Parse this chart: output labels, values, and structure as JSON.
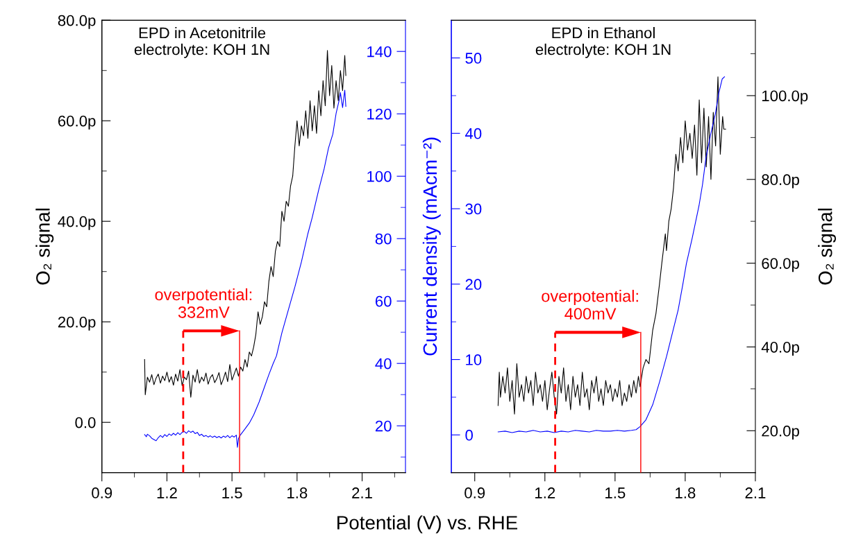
{
  "chart_data": [
    {
      "type": "line",
      "title": "EPD in Acetonitrile\nelectrolyte: KOH 1N",
      "xlabel": "Potential (V) vs. RHE",
      "ylabel": "O₂ signal",
      "xlim": [
        0.9,
        2.3
      ],
      "xticks": [
        0.9,
        1.2,
        1.5,
        1.8,
        2.1,
        {
          "value": 1.05,
          "label": null
        },
        {
          "value": 1.35,
          "label": null
        },
        {
          "value": 1.65,
          "label": null
        },
        {
          "value": 1.95,
          "label": null
        },
        {
          "value": 2.25,
          "label": null
        }
      ],
      "ylim": [
        -10,
        80
      ],
      "yticks": [
        {
          "value": 0,
          "label": "0.0"
        },
        {
          "value": 20,
          "label": "20.0p"
        },
        {
          "value": 40,
          "label": "40.0p"
        },
        {
          "value": 60,
          "label": "60.0p"
        },
        {
          "value": 80,
          "label": "80.0p"
        },
        {
          "value": 10,
          "label": null
        },
        {
          "value": 30,
          "label": null
        },
        {
          "value": 50,
          "label": null
        },
        {
          "value": 70,
          "label": null
        }
      ],
      "y2lim": [
        5,
        150
      ],
      "y2ticks": [
        20,
        40,
        60,
        80,
        100,
        120,
        140,
        {
          "value": 10,
          "label": null
        },
        {
          "value": 30,
          "label": null
        },
        {
          "value": 50,
          "label": null
        },
        {
          "value": 70,
          "label": null
        },
        {
          "value": 90,
          "label": null
        },
        {
          "value": 110,
          "label": null
        },
        {
          "value": 130,
          "label": null
        }
      ],
      "series": [
        {
          "color": "#000000",
          "x": [
            1.097,
            1.1,
            1.11,
            1.12,
            1.13,
            1.14,
            1.15,
            1.16,
            1.17,
            1.18,
            1.19,
            1.2,
            1.21,
            1.22,
            1.23,
            1.24,
            1.25,
            1.26,
            1.27,
            1.28,
            1.29,
            1.3,
            1.31,
            1.32,
            1.33,
            1.34,
            1.35,
            1.36,
            1.37,
            1.38,
            1.39,
            1.4,
            1.41,
            1.42,
            1.43,
            1.44,
            1.45,
            1.46,
            1.47,
            1.48,
            1.49,
            1.5,
            1.51,
            1.52,
            1.53,
            1.54,
            1.55,
            1.56,
            1.57,
            1.58,
            1.59,
            1.6,
            1.61,
            1.62,
            1.63,
            1.64,
            1.65,
            1.66,
            1.67,
            1.68,
            1.69,
            1.7,
            1.71,
            1.72,
            1.73,
            1.74,
            1.75,
            1.76,
            1.77,
            1.78,
            1.79,
            1.8,
            1.81,
            1.82,
            1.83,
            1.84,
            1.85,
            1.86,
            1.87,
            1.88,
            1.89,
            1.9,
            1.91,
            1.92,
            1.93,
            1.94,
            1.95,
            1.96,
            1.97,
            1.98,
            1.99,
            2.0,
            2.01,
            2.02,
            2.025
          ],
          "values": [
            12.5,
            5.5,
            9.0,
            8.0,
            9.5,
            7.5,
            8.8,
            9.6,
            7.8,
            9.2,
            8.3,
            10.0,
            8.0,
            9.1,
            7.4,
            9.6,
            8.2,
            10.5,
            7.3,
            9.0,
            8.5,
            10.2,
            5.0,
            9.4,
            8.0,
            10.5,
            7.8,
            9.0,
            8.2,
            9.8,
            7.6,
            8.9,
            9.5,
            7.9,
            8.7,
            9.9,
            7.5,
            8.6,
            10.0,
            8.1,
            11.5,
            8.4,
            9.6,
            10.8,
            9.2,
            11.0,
            10.2,
            12.5,
            11.0,
            14.0,
            13.2,
            15.0,
            17.5,
            22.0,
            19.5,
            21.0,
            24.0,
            23.0,
            28.0,
            31.0,
            29.0,
            34.0,
            36.0,
            35.0,
            42.0,
            40.0,
            44.0,
            43.0,
            47.0,
            49.0,
            55.0,
            60.0,
            55.0,
            59.0,
            57.0,
            62.0,
            56.5,
            64.0,
            58.0,
            63.0,
            57.5,
            66.0,
            61.0,
            68.0,
            63.0,
            74.0,
            65.0,
            71.0,
            62.5,
            68.0,
            64.0,
            70.0,
            66.0,
            73.0,
            69.0
          ]
        },
        {
          "color": "#0000ff",
          "axis": "y2",
          "x": [
            1.097,
            1.105,
            1.11,
            1.12,
            1.13,
            1.14,
            1.15,
            1.16,
            1.17,
            1.18,
            1.19,
            1.2,
            1.21,
            1.22,
            1.23,
            1.24,
            1.25,
            1.26,
            1.27,
            1.28,
            1.29,
            1.3,
            1.31,
            1.32,
            1.33,
            1.34,
            1.35,
            1.36,
            1.37,
            1.38,
            1.39,
            1.4,
            1.41,
            1.42,
            1.43,
            1.44,
            1.45,
            1.46,
            1.47,
            1.48,
            1.49,
            1.5,
            1.51,
            1.52,
            1.525,
            1.53,
            1.54,
            1.56,
            1.58,
            1.6,
            1.625,
            1.65,
            1.67,
            1.69,
            1.705,
            1.73,
            1.76,
            1.79,
            1.82,
            1.85,
            1.87,
            1.9,
            1.925,
            1.945,
            1.965,
            1.98,
            1.995,
            2.0,
            2.01,
            2.02,
            2.025
          ],
          "values": [
            17.2,
            16.5,
            17.3,
            16.8,
            16.0,
            15.6,
            15.2,
            16.2,
            16.9,
            16.3,
            17.2,
            16.6,
            17.4,
            16.9,
            17.6,
            17.0,
            17.8,
            17.2,
            17.9,
            18.2,
            17.6,
            18.4,
            17.9,
            18.3,
            17.5,
            17.9,
            16.9,
            17.3,
            16.6,
            16.9,
            16.4,
            16.8,
            16.3,
            16.7,
            16.2,
            16.6,
            16.1,
            16.7,
            16.3,
            16.9,
            16.2,
            16.8,
            16.4,
            17.0,
            13.1,
            16.0,
            17.2,
            19.0,
            20.9,
            23.5,
            27.6,
            32.5,
            36.4,
            40.0,
            42.4,
            49.8,
            57.2,
            64.5,
            72.5,
            81.6,
            86.8,
            95.7,
            102.4,
            109.0,
            113.5,
            120.1,
            124.6,
            126.8,
            122.0,
            127.6,
            122.4
          ]
        }
      ],
      "ref_lines": [
        {
          "axis": "x",
          "value": 1.275,
          "color": "#ff0000",
          "line_style": "dashed"
        },
        {
          "axis": "x",
          "value": 1.535,
          "color": "#ff0000",
          "line_style": "solid"
        }
      ],
      "annotations": [
        {
          "text": "overpotential:\n332mV",
          "x": 1.275,
          "y": 18.2
        }
      ]
    },
    {
      "type": "line",
      "title": "EPD in Ethanol\nelectrolyte: KOH 1N",
      "ylabel": "Current density (mAcm⁻²)",
      "y2label": "O₂ signal",
      "xlim": [
        0.8,
        2.1
      ],
      "xticks": [
        0.9,
        1.2,
        1.5,
        1.8,
        2.1,
        {
          "value": 1.05,
          "label": null
        },
        {
          "value": 1.35,
          "label": null
        },
        {
          "value": 1.65,
          "label": null
        },
        {
          "value": 1.95,
          "label": null
        }
      ],
      "ylim": [
        -5,
        55
      ],
      "yticks": [
        0,
        10,
        20,
        30,
        40,
        50,
        {
          "value": 5,
          "label": null
        },
        {
          "value": 15,
          "label": null
        },
        {
          "value": 25,
          "label": null
        },
        {
          "value": 35,
          "label": null
        },
        {
          "value": 45,
          "label": null
        }
      ],
      "y2lim": [
        10,
        118
      ],
      "y2ticks": [
        {
          "value": 20,
          "label": "20.0p"
        },
        {
          "value": 40,
          "label": "40.0p"
        },
        {
          "value": 60,
          "label": "60.0p"
        },
        {
          "value": 80,
          "label": "80.0p"
        },
        {
          "value": 100,
          "label": "100.0p"
        },
        {
          "value": 30,
          "label": null
        },
        {
          "value": 50,
          "label": null
        },
        {
          "value": 70,
          "label": null
        },
        {
          "value": 90,
          "label": null
        },
        {
          "value": 110,
          "label": null
        }
      ],
      "series": [
        {
          "color": "#0000ff",
          "x": [
            1.0,
            1.03,
            1.06,
            1.09,
            1.12,
            1.15,
            1.18,
            1.21,
            1.24,
            1.27,
            1.3,
            1.33,
            1.36,
            1.39,
            1.42,
            1.45,
            1.48,
            1.51,
            1.54,
            1.57,
            1.59,
            1.607,
            1.632,
            1.661,
            1.691,
            1.721,
            1.75,
            1.77,
            1.79,
            1.805,
            1.83,
            1.859,
            1.874,
            1.889,
            1.909,
            1.929,
            1.944,
            1.958,
            1.968
          ],
          "values": [
            0.4,
            0.5,
            0.3,
            0.5,
            0.4,
            0.6,
            0.4,
            0.5,
            0.3,
            0.5,
            0.4,
            0.6,
            0.5,
            0.4,
            0.6,
            0.5,
            0.5,
            0.6,
            0.5,
            0.6,
            0.7,
            1.1,
            2.0,
            4.0,
            7.1,
            10.5,
            14.1,
            16.6,
            20.0,
            22.7,
            26.1,
            30.4,
            33.2,
            36.8,
            39.9,
            42.6,
            45.4,
            47.2,
            47.5
          ]
        },
        {
          "color": "#000000",
          "axis": "y2",
          "x": [
            1.0,
            1.005,
            1.01,
            1.02,
            1.03,
            1.04,
            1.05,
            1.06,
            1.07,
            1.08,
            1.09,
            1.1,
            1.11,
            1.12,
            1.13,
            1.14,
            1.15,
            1.16,
            1.17,
            1.18,
            1.19,
            1.2,
            1.21,
            1.22,
            1.23,
            1.24,
            1.25,
            1.26,
            1.27,
            1.28,
            1.29,
            1.3,
            1.31,
            1.32,
            1.33,
            1.34,
            1.35,
            1.36,
            1.37,
            1.38,
            1.39,
            1.4,
            1.41,
            1.42,
            1.43,
            1.44,
            1.45,
            1.46,
            1.47,
            1.48,
            1.49,
            1.5,
            1.51,
            1.52,
            1.53,
            1.54,
            1.55,
            1.56,
            1.57,
            1.58,
            1.59,
            1.6,
            1.607,
            1.62,
            1.632,
            1.645,
            1.661,
            1.675,
            1.69,
            1.7,
            1.715,
            1.72,
            1.73,
            1.74,
            1.75,
            1.76,
            1.77,
            1.78,
            1.79,
            1.8,
            1.81,
            1.82,
            1.83,
            1.84,
            1.85,
            1.86,
            1.87,
            1.88,
            1.89,
            1.9,
            1.91,
            1.92,
            1.93,
            1.94,
            1.95,
            1.96,
            1.965,
            1.973
          ],
          "values": [
            26,
            34,
            28,
            33,
            29,
            35,
            27,
            32,
            24,
            36,
            28,
            31,
            27,
            33,
            29,
            32,
            26,
            34,
            29,
            31,
            27,
            32,
            25,
            30,
            34,
            28,
            24,
            33,
            29,
            35,
            27,
            31,
            25,
            33,
            28,
            31,
            26,
            34,
            28,
            30,
            25,
            32,
            29,
            33,
            27,
            30,
            26,
            32,
            29,
            31,
            27,
            30,
            28,
            32,
            26,
            29,
            27,
            31,
            28,
            32,
            29,
            33,
            30.5,
            35,
            37,
            36,
            44,
            48,
            55,
            60,
            67,
            63,
            70,
            73,
            78,
            86,
            82,
            90,
            84,
            94,
            87,
            91,
            85,
            93,
            81,
            99,
            84,
            97,
            83,
            95,
            80,
            96,
            88,
            104.5,
            86,
            95,
            92,
            92
          ]
        }
      ],
      "ref_lines": [
        {
          "axis": "x",
          "value": 1.244,
          "color": "#ff0000",
          "line_style": "dashed"
        },
        {
          "axis": "x",
          "value": 1.61,
          "color": "#ff0000",
          "line_style": "solid"
        }
      ],
      "annotations": [
        {
          "text": "overpotential:\n400mV",
          "x": 1.244,
          "y": 13.6
        }
      ]
    }
  ]
}
